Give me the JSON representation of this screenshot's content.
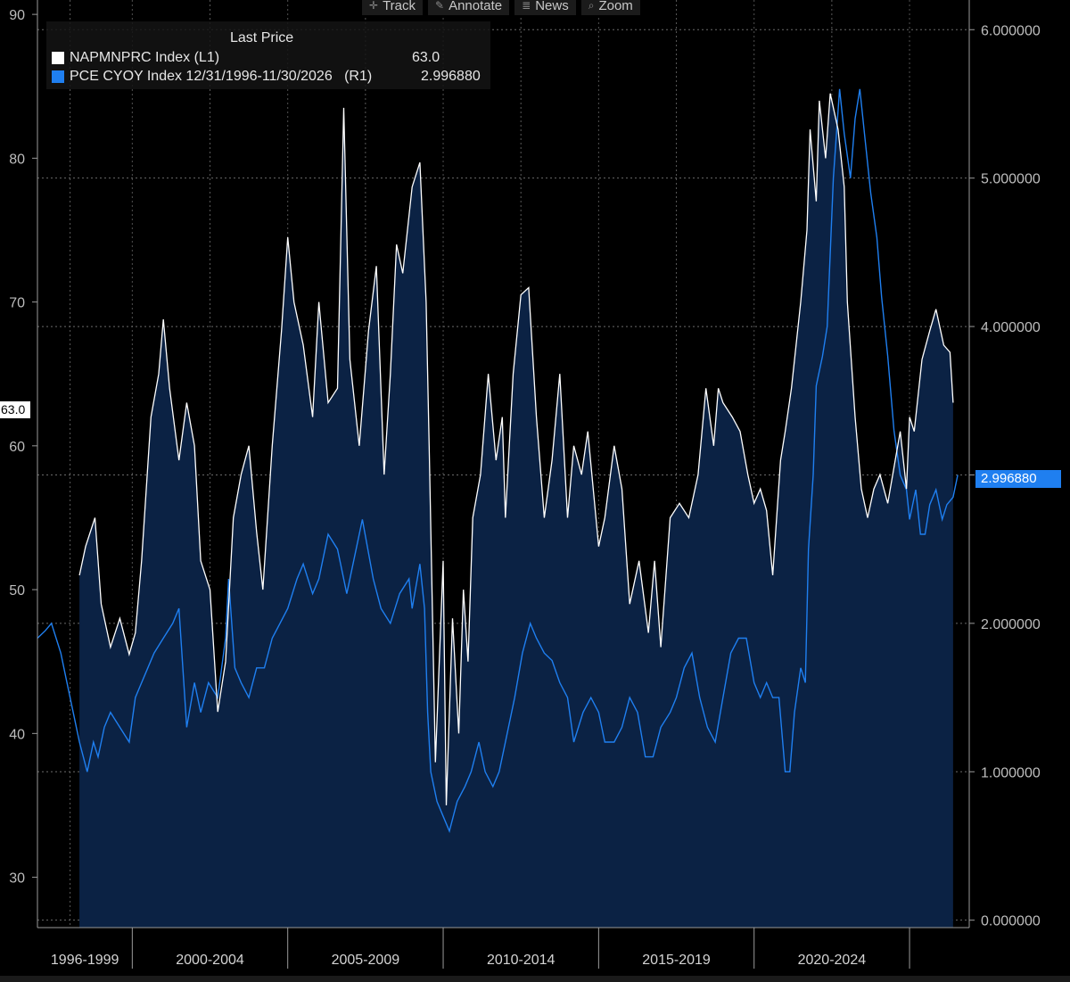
{
  "toolbar": {
    "items": [
      {
        "label": "Track",
        "icon": "crosshair-icon"
      },
      {
        "label": "Annotate",
        "icon": "pencil-icon"
      },
      {
        "label": "News",
        "icon": "news-icon"
      },
      {
        "label": "Zoom",
        "icon": "magnifier-icon"
      }
    ]
  },
  "legend": {
    "header": "Last Price",
    "entries": [
      {
        "name": "NAPMNPRC Index  (L1)",
        "value": "63.0",
        "color": "#ffffff"
      },
      {
        "name": "PCE CYOY Index 12/31/1996-11/30/2026   (R1)",
        "value": "2.996880",
        "color": "#1f7ff0"
      }
    ]
  },
  "last_values": {
    "left": "63.0",
    "right": "2.996880"
  },
  "chart_data": {
    "type": "line",
    "title": "",
    "x_start": 1996.95,
    "x_end": 2026.92,
    "x_period_labels": [
      "1996-1999",
      "2000-2004",
      "2005-2009",
      "2010-2014",
      "2015-2019",
      "2020-2024"
    ],
    "x_period_bounds": [
      1996.95,
      2000.0,
      2005.0,
      2010.0,
      2015.0,
      2020.0,
      2025.0
    ],
    "left_axis": {
      "ticks": [
        30,
        40,
        50,
        60,
        70,
        80,
        90
      ],
      "range": [
        26.5,
        91
      ]
    },
    "right_axis": {
      "ticks": [
        "0.000000",
        "1.000000",
        "2.000000",
        "3.000000",
        "4.000000",
        "5.000000",
        "6.000000"
      ],
      "range": [
        -0.05,
        6.2
      ]
    },
    "series": [
      {
        "name": "NAPMNPRC Index",
        "axis": "left",
        "color": "#ffffff",
        "fill": "#0b2244",
        "points": [
          [
            1998.3,
            51
          ],
          [
            1998.5,
            53
          ],
          [
            1998.8,
            55
          ],
          [
            1999.0,
            49
          ],
          [
            1999.3,
            46
          ],
          [
            1999.6,
            48
          ],
          [
            1999.9,
            45.5
          ],
          [
            2000.1,
            47
          ],
          [
            2000.3,
            52
          ],
          [
            2000.6,
            62
          ],
          [
            2000.85,
            65
          ],
          [
            2001.0,
            68.8
          ],
          [
            2001.2,
            64
          ],
          [
            2001.5,
            59
          ],
          [
            2001.75,
            63
          ],
          [
            2002.0,
            60
          ],
          [
            2002.2,
            52
          ],
          [
            2002.5,
            50
          ],
          [
            2002.75,
            41.5
          ],
          [
            2003.0,
            45
          ],
          [
            2003.25,
            55
          ],
          [
            2003.5,
            58
          ],
          [
            2003.75,
            60
          ],
          [
            2004.0,
            54
          ],
          [
            2004.2,
            50
          ],
          [
            2004.5,
            60
          ],
          [
            2004.8,
            68
          ],
          [
            2005.0,
            74.5
          ],
          [
            2005.2,
            70
          ],
          [
            2005.5,
            67
          ],
          [
            2005.8,
            62
          ],
          [
            2006.0,
            70
          ],
          [
            2006.3,
            63
          ],
          [
            2006.6,
            64
          ],
          [
            2006.8,
            83.5
          ],
          [
            2007.0,
            66
          ],
          [
            2007.3,
            60
          ],
          [
            2007.6,
            68
          ],
          [
            2007.85,
            72.5
          ],
          [
            2008.1,
            58
          ],
          [
            2008.3,
            65
          ],
          [
            2008.5,
            74
          ],
          [
            2008.7,
            72
          ],
          [
            2009.0,
            78
          ],
          [
            2009.25,
            79.7
          ],
          [
            2009.45,
            70
          ],
          [
            2009.55,
            60
          ],
          [
            2009.75,
            38
          ],
          [
            2010.0,
            52
          ],
          [
            2010.1,
            35
          ],
          [
            2010.3,
            48
          ],
          [
            2010.5,
            40
          ],
          [
            2010.65,
            50
          ],
          [
            2010.8,
            45
          ],
          [
            2010.95,
            55
          ],
          [
            2011.2,
            58
          ],
          [
            2011.45,
            65
          ],
          [
            2011.7,
            59
          ],
          [
            2011.9,
            62
          ],
          [
            2012.0,
            55
          ],
          [
            2012.25,
            65
          ],
          [
            2012.5,
            70.5
          ],
          [
            2012.75,
            71
          ],
          [
            2013.0,
            62
          ],
          [
            2013.25,
            55
          ],
          [
            2013.5,
            59
          ],
          [
            2013.75,
            65
          ],
          [
            2014.0,
            55
          ],
          [
            2014.2,
            60
          ],
          [
            2014.45,
            58
          ],
          [
            2014.65,
            61
          ],
          [
            2015.0,
            53
          ],
          [
            2015.2,
            55
          ],
          [
            2015.5,
            60
          ],
          [
            2015.75,
            57
          ],
          [
            2016.0,
            49
          ],
          [
            2016.3,
            52
          ],
          [
            2016.6,
            47
          ],
          [
            2016.8,
            52
          ],
          [
            2017.0,
            46
          ],
          [
            2017.3,
            55
          ],
          [
            2017.6,
            56
          ],
          [
            2017.9,
            55
          ],
          [
            2018.2,
            58
          ],
          [
            2018.45,
            64
          ],
          [
            2018.7,
            60
          ],
          [
            2018.85,
            64
          ],
          [
            2019.0,
            63
          ],
          [
            2019.3,
            62
          ],
          [
            2019.55,
            61
          ],
          [
            2019.8,
            58
          ],
          [
            2020.0,
            56
          ],
          [
            2020.2,
            57
          ],
          [
            2020.4,
            55.5
          ],
          [
            2020.6,
            51
          ],
          [
            2020.85,
            59
          ],
          [
            2021.0,
            61
          ],
          [
            2021.2,
            64
          ],
          [
            2021.5,
            70
          ],
          [
            2021.7,
            75
          ],
          [
            2021.8,
            82
          ],
          [
            2022.0,
            77
          ],
          [
            2022.1,
            84
          ],
          [
            2022.3,
            80
          ],
          [
            2022.45,
            84.5
          ],
          [
            2022.7,
            82
          ],
          [
            2022.9,
            78
          ],
          [
            2023.0,
            70
          ],
          [
            2023.25,
            62
          ],
          [
            2023.45,
            57
          ],
          [
            2023.65,
            55
          ],
          [
            2023.85,
            57
          ],
          [
            2024.05,
            58
          ],
          [
            2024.3,
            56
          ],
          [
            2024.5,
            58.5
          ],
          [
            2024.7,
            61
          ],
          [
            2024.9,
            57
          ],
          [
            2025.0,
            62
          ],
          [
            2025.15,
            61
          ],
          [
            2025.4,
            66
          ],
          [
            2025.65,
            68
          ],
          [
            2025.85,
            69.5
          ],
          [
            2026.1,
            67
          ],
          [
            2026.3,
            66.5
          ],
          [
            2026.4,
            63
          ]
        ]
      },
      {
        "name": "PCE CYOY Index",
        "axis": "right",
        "color": "#1f7ff0",
        "points": [
          [
            1996.95,
            1.9
          ],
          [
            1997.2,
            1.95
          ],
          [
            1997.4,
            2.0
          ],
          [
            1997.7,
            1.8
          ],
          [
            1997.9,
            1.6
          ],
          [
            1998.1,
            1.4
          ],
          [
            1998.3,
            1.2
          ],
          [
            1998.55,
            1.0
          ],
          [
            1998.75,
            1.2
          ],
          [
            1998.9,
            1.1
          ],
          [
            1999.1,
            1.3
          ],
          [
            1999.3,
            1.4
          ],
          [
            1999.6,
            1.3
          ],
          [
            1999.9,
            1.2
          ],
          [
            2000.1,
            1.5
          ],
          [
            2000.3,
            1.6
          ],
          [
            2000.5,
            1.7
          ],
          [
            2000.7,
            1.8
          ],
          [
            2001.0,
            1.9
          ],
          [
            2001.3,
            2.0
          ],
          [
            2001.5,
            2.1
          ],
          [
            2001.75,
            1.3
          ],
          [
            2002.0,
            1.6
          ],
          [
            2002.2,
            1.4
          ],
          [
            2002.45,
            1.6
          ],
          [
            2002.75,
            1.5
          ],
          [
            2003.0,
            1.9
          ],
          [
            2003.1,
            2.3
          ],
          [
            2003.3,
            1.7
          ],
          [
            2003.5,
            1.6
          ],
          [
            2003.75,
            1.5
          ],
          [
            2004.0,
            1.7
          ],
          [
            2004.25,
            1.7
          ],
          [
            2004.5,
            1.9
          ],
          [
            2004.75,
            2.0
          ],
          [
            2005.0,
            2.1
          ],
          [
            2005.3,
            2.3
          ],
          [
            2005.5,
            2.4
          ],
          [
            2005.8,
            2.2
          ],
          [
            2006.0,
            2.3
          ],
          [
            2006.3,
            2.6
          ],
          [
            2006.6,
            2.5
          ],
          [
            2006.9,
            2.2
          ],
          [
            2007.2,
            2.5
          ],
          [
            2007.4,
            2.7
          ],
          [
            2007.75,
            2.3
          ],
          [
            2008.0,
            2.1
          ],
          [
            2008.3,
            2.0
          ],
          [
            2008.6,
            2.2
          ],
          [
            2008.9,
            2.3
          ],
          [
            2009.0,
            2.1
          ],
          [
            2009.25,
            2.4
          ],
          [
            2009.4,
            2.1
          ],
          [
            2009.5,
            1.4
          ],
          [
            2009.6,
            1.0
          ],
          [
            2009.8,
            0.8
          ],
          [
            2010.0,
            0.7
          ],
          [
            2010.2,
            0.6
          ],
          [
            2010.45,
            0.8
          ],
          [
            2010.7,
            0.9
          ],
          [
            2010.9,
            1.0
          ],
          [
            2011.15,
            1.2
          ],
          [
            2011.35,
            1.0
          ],
          [
            2011.6,
            0.9
          ],
          [
            2011.8,
            1.0
          ],
          [
            2012.0,
            1.2
          ],
          [
            2012.3,
            1.5
          ],
          [
            2012.55,
            1.8
          ],
          [
            2012.8,
            2.0
          ],
          [
            2013.0,
            1.9
          ],
          [
            2013.25,
            1.8
          ],
          [
            2013.5,
            1.75
          ],
          [
            2013.75,
            1.6
          ],
          [
            2014.0,
            1.5
          ],
          [
            2014.2,
            1.2
          ],
          [
            2014.5,
            1.4
          ],
          [
            2014.75,
            1.5
          ],
          [
            2015.0,
            1.4
          ],
          [
            2015.2,
            1.2
          ],
          [
            2015.5,
            1.2
          ],
          [
            2015.75,
            1.3
          ],
          [
            2016.0,
            1.5
          ],
          [
            2016.25,
            1.4
          ],
          [
            2016.5,
            1.1
          ],
          [
            2016.75,
            1.1
          ],
          [
            2017.0,
            1.3
          ],
          [
            2017.3,
            1.4
          ],
          [
            2017.5,
            1.5
          ],
          [
            2017.75,
            1.7
          ],
          [
            2018.0,
            1.8
          ],
          [
            2018.25,
            1.5
          ],
          [
            2018.5,
            1.3
          ],
          [
            2018.75,
            1.2
          ],
          [
            2019.0,
            1.5
          ],
          [
            2019.25,
            1.8
          ],
          [
            2019.5,
            1.9
          ],
          [
            2019.75,
            1.9
          ],
          [
            2020.0,
            1.6
          ],
          [
            2020.2,
            1.5
          ],
          [
            2020.4,
            1.6
          ],
          [
            2020.6,
            1.5
          ],
          [
            2020.8,
            1.5
          ],
          [
            2021.0,
            1.0
          ],
          [
            2021.15,
            1.0
          ],
          [
            2021.3,
            1.4
          ],
          [
            2021.5,
            1.7
          ],
          [
            2021.65,
            1.6
          ],
          [
            2021.75,
            2.5
          ],
          [
            2021.9,
            3.0
          ],
          [
            2022.0,
            3.6
          ],
          [
            2022.2,
            3.8
          ],
          [
            2022.35,
            4.0
          ],
          [
            2022.55,
            5.0
          ],
          [
            2022.75,
            5.6
          ],
          [
            2022.9,
            5.3
          ],
          [
            2023.1,
            5.0
          ],
          [
            2023.25,
            5.4
          ],
          [
            2023.4,
            5.6
          ],
          [
            2023.55,
            5.3
          ],
          [
            2023.75,
            4.9
          ],
          [
            2023.95,
            4.6
          ],
          [
            2024.1,
            4.2
          ],
          [
            2024.3,
            3.8
          ],
          [
            2024.5,
            3.3
          ],
          [
            2024.7,
            3.0
          ],
          [
            2024.9,
            2.9
          ],
          [
            2025.0,
            2.7
          ],
          [
            2025.2,
            2.9
          ],
          [
            2025.35,
            2.6
          ],
          [
            2025.5,
            2.6
          ],
          [
            2025.65,
            2.8
          ],
          [
            2025.85,
            2.9
          ],
          [
            2026.05,
            2.7
          ],
          [
            2026.2,
            2.8
          ],
          [
            2026.4,
            2.85
          ],
          [
            2026.55,
            3.0
          ]
        ]
      }
    ]
  }
}
